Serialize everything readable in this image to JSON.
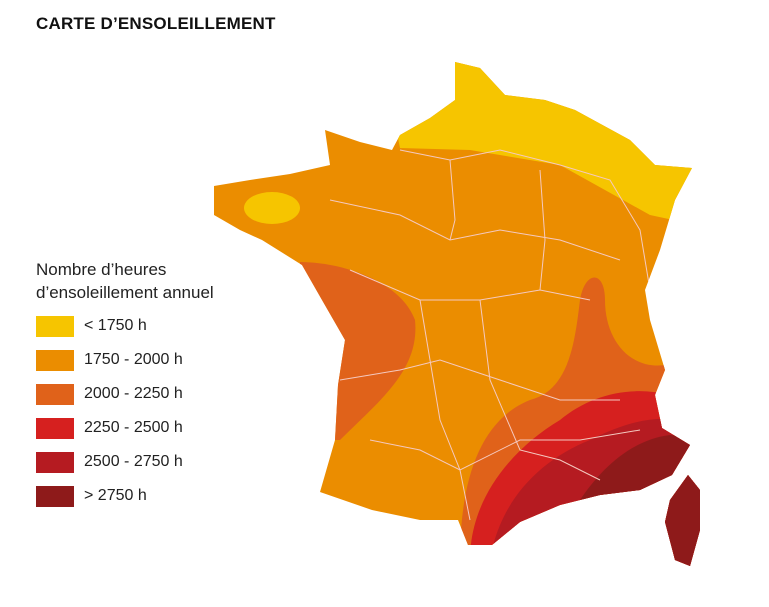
{
  "title": "CARTE D’ENSOLEILLEMENT",
  "legend": {
    "title_line1": "Nombre d’heures",
    "title_line2": "d’ensoleillement annuel",
    "items": [
      {
        "label": "< 1750 h",
        "color": "#f6c500"
      },
      {
        "label": "1750 - 2000 h",
        "color": "#eb8d00"
      },
      {
        "label": "2000 - 2250 h",
        "color": "#e0621a"
      },
      {
        "label": "2250 - 2500 h",
        "color": "#d6201f"
      },
      {
        "label": "2500 - 2750 h",
        "color": "#b51b21"
      },
      {
        "label": "> 2750 h",
        "color": "#8e1a1a"
      }
    ]
  },
  "map": {
    "region": "France",
    "border_color": "#f5c9c0"
  }
}
